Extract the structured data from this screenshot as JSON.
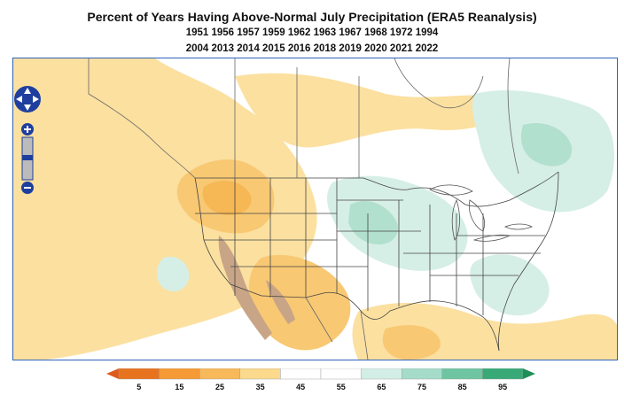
{
  "title": "Percent of Years Having Above-Normal July Precipitation (ERA5 Reanalysis)",
  "years_line1": "1951 1956 1957 1959 1962 1963 1967 1968 1972 1994",
  "years_line2": "2004 2013 2014 2015 2016 2018 2019 2020 2021 2022",
  "map": {
    "region": "United States and surroundings",
    "controls": {
      "pan": [
        "pan-up-icon",
        "pan-down-icon",
        "pan-left-icon",
        "pan-right-icon"
      ],
      "zoom": [
        "zoom-in-icon",
        "zoom-out-icon"
      ]
    }
  },
  "colorbar": {
    "tick_labels": [
      "5",
      "15",
      "25",
      "35",
      "45",
      "55",
      "65",
      "75",
      "85",
      "95"
    ],
    "colors": [
      "#e8731f",
      "#f59a34",
      "#f8b95a",
      "#fbd98d",
      "#ffffff",
      "#ffffff",
      "#d3eee6",
      "#a5dcc9",
      "#6fc5a2",
      "#3aa978"
    ]
  },
  "palette": {
    "dry_light": "#fbe0a0",
    "dry_medium": "#f8c873",
    "dry_strong": "#f4a93d",
    "wet_light": "#d6efe6",
    "wet_medium": "#a9dcc8",
    "no_data": "#c8a586",
    "frame": "#2f63b8"
  }
}
